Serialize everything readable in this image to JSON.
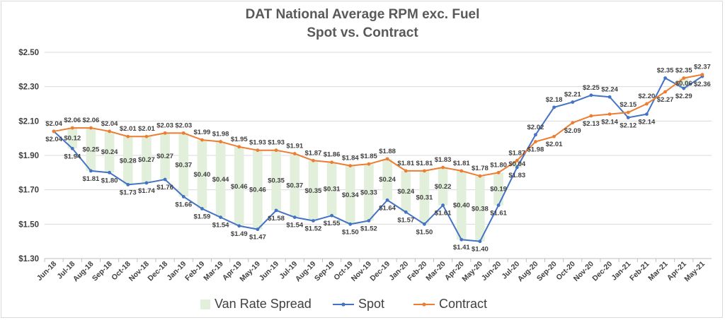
{
  "chart_data": {
    "type": "line",
    "title": "DAT National Average RPM exc. Fuel",
    "subtitle": "Spot vs. Contract",
    "categories": [
      "Jun-18",
      "Jul-18",
      "Aug-18",
      "Sep-18",
      "Oct-18",
      "Nov-18",
      "Dec-18",
      "Jan-19",
      "Feb-19",
      "Mar-19",
      "Apr-19",
      "May-19",
      "Jun-19",
      "Jul-19",
      "Aug-19",
      "Sep-19",
      "Oct-19",
      "Nov-19",
      "Dec-19",
      "Jan-20",
      "Feb-20",
      "Mar-20",
      "Apr-20",
      "May-20",
      "Jun-20",
      "Jul-20",
      "Aug-20",
      "Sep-20",
      "Oct-20",
      "Nov-20",
      "Dec-20",
      "Jan-21",
      "Feb-21",
      "Mar-21",
      "Apr-21",
      "May-21"
    ],
    "ylim": [
      1.3,
      2.5
    ],
    "y_ticks": [
      "$1.30",
      "$1.50",
      "$1.70",
      "$1.90",
      "$2.10",
      "$2.30",
      "$2.50"
    ],
    "grid": "horizontal",
    "legend_position": "bottom",
    "series": [
      {
        "name": "Van Rate Spread",
        "kind": "band",
        "color": "#e2efda",
        "values": [
          0.0,
          0.12,
          0.25,
          0.24,
          0.28,
          0.27,
          0.27,
          0.37,
          0.4,
          0.44,
          0.46,
          0.46,
          0.35,
          0.37,
          0.35,
          0.31,
          0.34,
          0.33,
          0.24,
          0.24,
          0.31,
          0.22,
          0.4,
          0.38,
          0.19,
          0.04,
          null,
          null,
          null,
          null,
          null,
          null,
          null,
          null,
          0.06,
          null
        ],
        "labels": [
          "",
          "$0.12",
          "$0.25",
          "$0.24",
          "$0.28",
          "$0.27",
          "$0.27",
          "$0.37",
          "$0.40",
          "$0.44",
          "$0.46",
          "$0.46",
          "$0.35",
          "$0.37",
          "$0.35",
          "$0.31",
          "$0.34",
          "$0.33",
          "$0.24",
          "$0.24",
          "$0.31",
          "$0.22",
          "$0.40",
          "$0.38",
          "$0.19",
          "$0.04",
          "",
          "",
          "",
          "",
          "",
          "",
          "",
          "",
          "$0.06",
          ""
        ]
      },
      {
        "name": "Spot",
        "kind": "line",
        "color": "#4472c4",
        "values": [
          2.04,
          1.94,
          1.81,
          1.8,
          1.73,
          1.74,
          1.76,
          1.66,
          1.59,
          1.54,
          1.49,
          1.47,
          1.58,
          1.54,
          1.52,
          1.55,
          1.5,
          1.52,
          1.64,
          1.57,
          1.5,
          1.61,
          1.41,
          1.4,
          1.61,
          1.83,
          2.02,
          2.18,
          2.21,
          2.25,
          2.24,
          2.12,
          2.14,
          2.35,
          2.29,
          2.36
        ],
        "labels": [
          "$2.04",
          "$1.94",
          "$1.81",
          "$1.80",
          "$1.73",
          "$1.74",
          "$1.76",
          "$1.66",
          "$1.59",
          "$1.54",
          "$1.49",
          "$1.47",
          "$1.58",
          "$1.54",
          "$1.52",
          "$1.55",
          "$1.50",
          "$1.52",
          "$1.64",
          "$1.57",
          "$1.50",
          "$1.61",
          "$1.41",
          "$1.40",
          "$1.61",
          "$1.83",
          "$2.02",
          "$2.18",
          "$2.21",
          "$2.25",
          "$2.24",
          "$2.12",
          "$2.14",
          "$2.35",
          "$2.29",
          "$2.36"
        ]
      },
      {
        "name": "Contract",
        "kind": "line",
        "color": "#ed7d31",
        "values": [
          2.04,
          2.06,
          2.06,
          2.04,
          2.01,
          2.01,
          2.03,
          2.03,
          1.99,
          1.98,
          1.95,
          1.93,
          1.93,
          1.91,
          1.87,
          1.86,
          1.84,
          1.85,
          1.88,
          1.81,
          1.81,
          1.83,
          1.81,
          1.78,
          1.8,
          1.87,
          1.98,
          2.01,
          2.09,
          2.13,
          2.14,
          2.15,
          2.2,
          2.27,
          2.35,
          2.37
        ],
        "labels": [
          "$2.04",
          "$2.06",
          "$2.06",
          "$2.04",
          "$2.01",
          "$2.01",
          "$2.03",
          "$2.03",
          "$1.99",
          "$1.98",
          "$1.95",
          "$1.93",
          "$1.93",
          "$1.91",
          "$1.87",
          "$1.86",
          "$1.84",
          "$1.85",
          "$1.88",
          "$1.81",
          "$1.81",
          "$1.83",
          "$1.81",
          "$1.78",
          "$1.80",
          "$1.87",
          "$1.98",
          "$2.01",
          "$2.09",
          "$2.13",
          "$2.14",
          "$2.15",
          "$2.20",
          "$2.27",
          "$2.35",
          "$2.37"
        ]
      }
    ]
  }
}
